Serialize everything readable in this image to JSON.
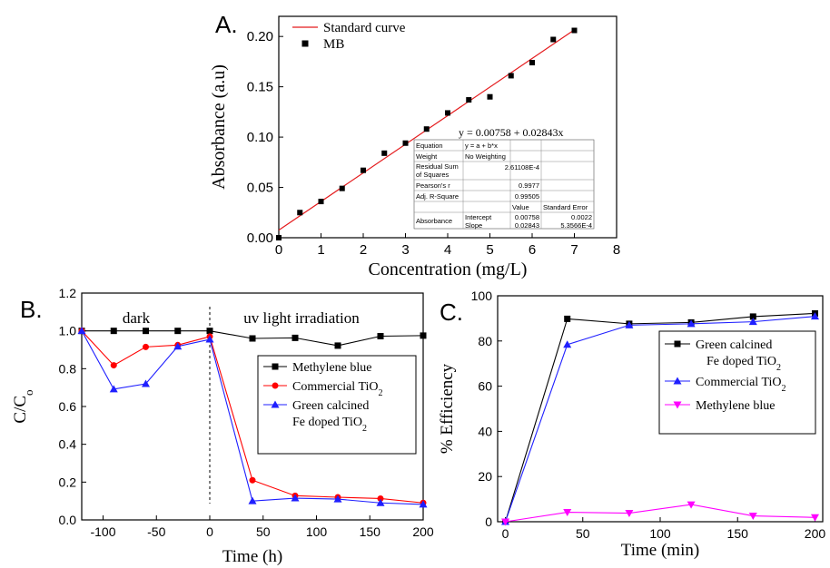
{
  "colors": {
    "fit_line": "#e41a1c",
    "black": "#000000",
    "red": "#ff0000",
    "blue": "#1f1fff",
    "magenta": "#ff00ff"
  },
  "chart_data": [
    {
      "panel_label": "A.",
      "type": "scatter",
      "xlabel": "Concentration (mg/L)",
      "ylabel": "Absorbance (a.u)",
      "xlim": [
        0,
        8
      ],
      "ylim": [
        0,
        0.22
      ],
      "x_ticks": [
        "0",
        "1",
        "2",
        "3",
        "4",
        "5",
        "6",
        "7",
        "8"
      ],
      "y_ticks": [
        "0.00",
        "0.05",
        "0.10",
        "0.15",
        "0.20"
      ],
      "legend": [
        "Standard curve",
        "MB"
      ],
      "legend_position": "top-left",
      "equation": "y = 0.00758 + 0.02843x",
      "fit": {
        "name": "Standard curve",
        "intercept": 0.00758,
        "slope": 0.02843,
        "x_range": [
          0,
          7
        ]
      },
      "series": [
        {
          "name": "MB",
          "x": [
            0,
            0.5,
            1,
            1.5,
            2,
            2.5,
            3,
            3.5,
            4,
            4.5,
            5,
            5.5,
            6,
            6.5,
            7
          ],
          "y": [
            0.0,
            0.025,
            0.036,
            0.049,
            0.067,
            0.084,
            0.094,
            0.108,
            0.124,
            0.137,
            0.14,
            0.161,
            0.174,
            0.197,
            0.206
          ]
        }
      ],
      "stats_table": {
        "rows": [
          [
            "Equation",
            "y = a + b*x",
            "",
            ""
          ],
          [
            "Weight",
            "No Weighting",
            "",
            ""
          ],
          [
            "Residual Sum of Squares",
            "2.61108E-4",
            "",
            ""
          ],
          [
            "Pearson's r",
            "0.9977",
            "",
            ""
          ],
          [
            "Adj. R-Square",
            "0.99505",
            "",
            ""
          ]
        ],
        "header": [
          "",
          "",
          "Value",
          "Standard Error"
        ],
        "param_group": "Absorbance",
        "params": [
          [
            "Intercept",
            "0.00758",
            "0.0022"
          ],
          [
            "Slope",
            "0.02843",
            "5.3566E-4"
          ]
        ]
      }
    },
    {
      "panel_label": "B.",
      "type": "line",
      "xlabel": "Time (h)",
      "ylabel": "C/C",
      "ylabel_subscript": "o",
      "xlim": [
        -120,
        200
      ],
      "ylim": [
        0,
        1.2
      ],
      "x_ticks": [
        "-100",
        "-50",
        "0",
        "50",
        "100",
        "150",
        "200"
      ],
      "y_ticks": [
        "0.0",
        "0.2",
        "0.4",
        "0.6",
        "0.8",
        "1.0",
        "1.2"
      ],
      "annotations": [
        "dark",
        "uv light irradiation"
      ],
      "legend_position": "right",
      "series": [
        {
          "name": "Methylene blue",
          "color": "#000000",
          "marker": "square",
          "x": [
            -120,
            -90,
            -60,
            -30,
            0,
            40,
            80,
            120,
            160,
            200
          ],
          "y": [
            1.0,
            1.0,
            1.0,
            1.0,
            1.0,
            0.96,
            0.963,
            0.922,
            0.972,
            0.975
          ]
        },
        {
          "name": "Commercial TiO",
          "name_subscript": "2",
          "color": "#ff0000",
          "marker": "circle",
          "x": [
            -120,
            -90,
            -60,
            -30,
            0,
            40,
            80,
            120,
            160,
            200
          ],
          "y": [
            1.0,
            0.818,
            0.915,
            0.925,
            0.97,
            0.21,
            0.128,
            0.12,
            0.113,
            0.09
          ]
        },
        {
          "name": "Green calcined",
          "name_line2": "Fe doped TiO",
          "name_subscript": "2",
          "color": "#1f1fff",
          "marker": "triangle-up",
          "x": [
            -120,
            -90,
            -60,
            -30,
            0,
            40,
            80,
            120,
            160,
            200
          ],
          "y": [
            1.0,
            0.692,
            0.72,
            0.918,
            0.955,
            0.1,
            0.115,
            0.11,
            0.09,
            0.082
          ]
        }
      ]
    },
    {
      "panel_label": "C.",
      "type": "line",
      "xlabel": "Time (min)",
      "ylabel": "% Efficiency",
      "xlim": [
        -5,
        205
      ],
      "ylim": [
        0,
        100
      ],
      "x_ticks": [
        "0",
        "50",
        "100",
        "150",
        "200"
      ],
      "y_ticks": [
        "0",
        "20",
        "40",
        "60",
        "80",
        "100"
      ],
      "legend_position": "top-right",
      "series": [
        {
          "name": "Green calcined",
          "name_line2": "Fe doped TiO",
          "name_subscript": "2",
          "color": "#000000",
          "marker": "square",
          "x": [
            0,
            40,
            80,
            120,
            160,
            200
          ],
          "y": [
            0,
            89.8,
            87.6,
            88.2,
            90.8,
            92.2
          ]
        },
        {
          "name": "Commercial TiO",
          "name_subscript": "2",
          "color": "#1f1fff",
          "marker": "triangle-up",
          "x": [
            0,
            40,
            80,
            120,
            160,
            200
          ],
          "y": [
            0,
            78.4,
            87.0,
            87.6,
            88.5,
            90.9
          ]
        },
        {
          "name": "Methylene blue",
          "color": "#ff00ff",
          "marker": "triangle-down",
          "x": [
            0,
            40,
            80,
            120,
            160,
            200
          ],
          "y": [
            0,
            4.2,
            3.8,
            7.6,
            2.6,
            1.9
          ]
        }
      ]
    }
  ]
}
